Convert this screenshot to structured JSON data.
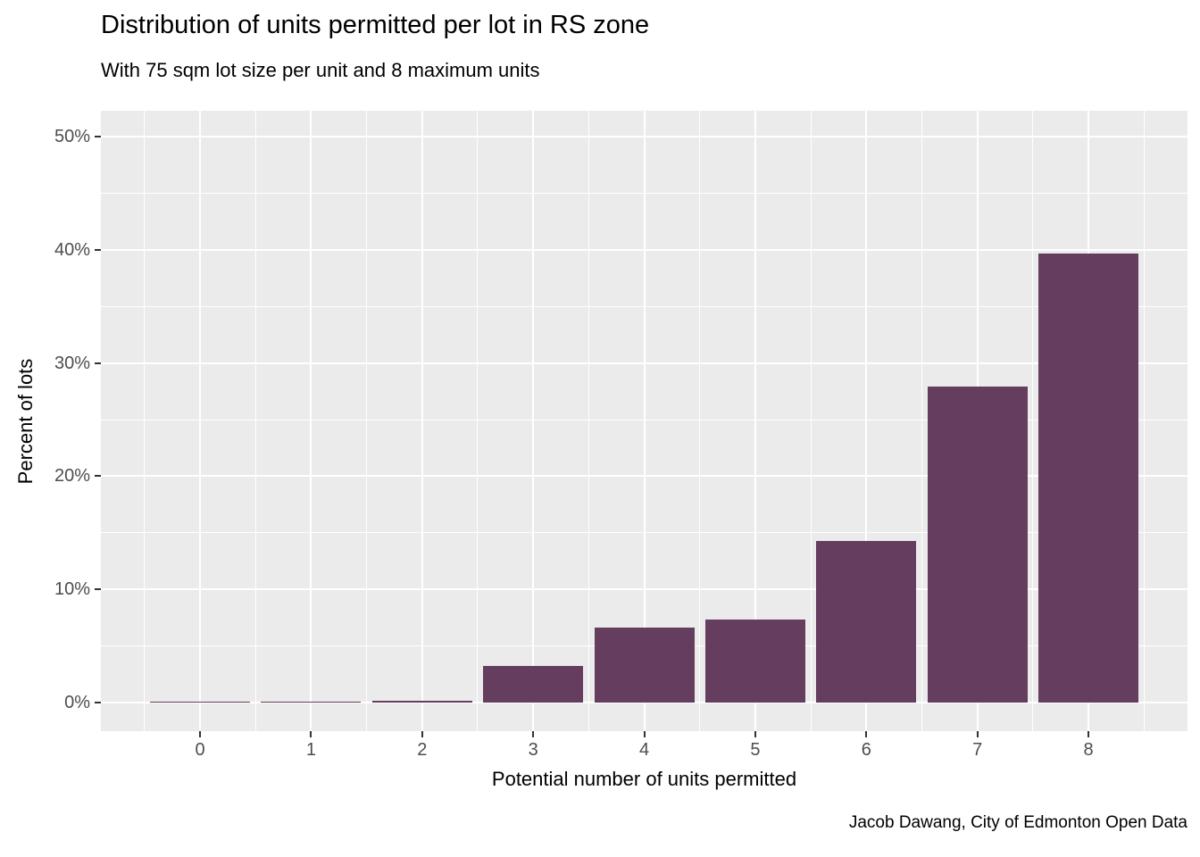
{
  "chart_data": {
    "type": "bar",
    "title": "Distribution of units permitted per lot in RS zone",
    "subtitle": "With 75 sqm lot size per unit and 8 maximum units",
    "xlabel": "Potential number of units permitted",
    "ylabel": "Percent of lots",
    "caption": "Jacob Dawang, City of Edmonton Open Data",
    "categories": [
      "0",
      "1",
      "2",
      "3",
      "4",
      "5",
      "6",
      "7",
      "8"
    ],
    "values": [
      0.1,
      0.1,
      0.2,
      3.2,
      6.6,
      7.3,
      14.3,
      27.9,
      39.7
    ],
    "y_ticks": [
      0,
      10,
      20,
      30,
      40,
      50
    ],
    "y_tick_labels": [
      "0%",
      "10%",
      "20%",
      "30%",
      "40%",
      "50%"
    ],
    "y_minor_ticks": [
      5,
      15,
      25,
      35,
      45
    ],
    "ylim": [
      -2.52,
      52.29
    ],
    "grid": true,
    "legend": false,
    "colors": {
      "bar": "#643D5F",
      "panel_bg": "#EBEBEB",
      "grid": "#FFFFFF",
      "tick_text": "#4D4D4D",
      "tick_mark": "#333333",
      "title_text": "#000000"
    }
  }
}
